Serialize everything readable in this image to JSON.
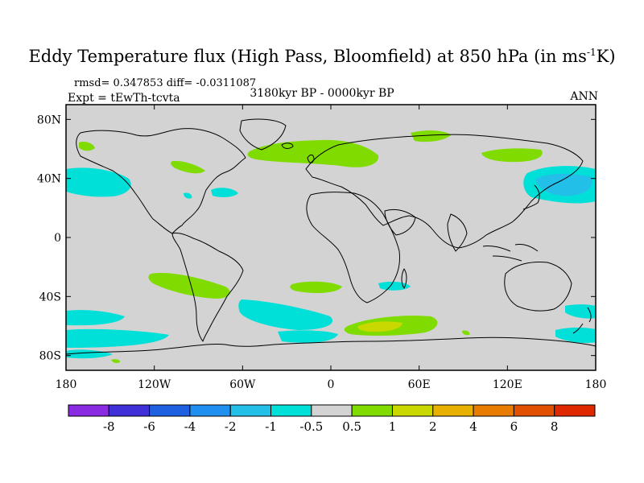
{
  "title": {
    "main": "Eddy Temperature flux (High Pass, Bloomfield) at 850 hPa (in ms",
    "sup": "-1",
    "end": "K)"
  },
  "stats": "rmsd= 0.347853 diff= -0.0311087",
  "experiment": "Expt = tEwTh-tcvta",
  "period": "3180kyr BP - 0000kyr BP",
  "season": "ANN",
  "map": {
    "lat_labels": [
      "80N",
      "40N",
      "0",
      "40S",
      "80S"
    ],
    "lon_labels": [
      "180",
      "120W",
      "60W",
      "0",
      "60E",
      "120E",
      "180"
    ],
    "colors": {
      "ocean": "#d3d3d3",
      "coast": "#000000"
    },
    "features": [
      {
        "name": "n-atlantic-pos-anomaly",
        "level": "0.5 to 1",
        "color": "#80dc00"
      },
      {
        "name": "eurasia-pos-anomaly",
        "level": "0.5 to 1",
        "color": "#80dc00"
      },
      {
        "name": "n-pacific-neg-anomaly",
        "level": "-1 to -0.5",
        "color": "#00e0d8"
      },
      {
        "name": "nw-pacific-neg-anomaly",
        "level": "-2 to -1",
        "color": "#22c0e8"
      },
      {
        "name": "s-pacific-pos-anomaly",
        "level": "0.5 to 1",
        "color": "#80dc00"
      },
      {
        "name": "s-atlantic-pos-anomaly",
        "level": "0.5 to 1",
        "color": "#80dc00"
      },
      {
        "name": "s-indian-pos-anomaly",
        "level": "1 to 2",
        "color": "#c8d800"
      },
      {
        "name": "southern-ocean-neg-anomaly",
        "level": "-1 to -0.5",
        "color": "#00e0d8"
      }
    ]
  },
  "colorbar": {
    "labels": [
      "-8",
      "-6",
      "-4",
      "-2",
      "-1",
      "-0.5",
      "0.5",
      "1",
      "2",
      "4",
      "6",
      "8"
    ],
    "colors": [
      "#8a2be2",
      "#4030d8",
      "#1e60e0",
      "#1f90f0",
      "#22c0e8",
      "#00e0d8",
      "#d3d3d3",
      "#80dc00",
      "#c8d800",
      "#e8b000",
      "#e87c00",
      "#e05000",
      "#e02800"
    ]
  }
}
